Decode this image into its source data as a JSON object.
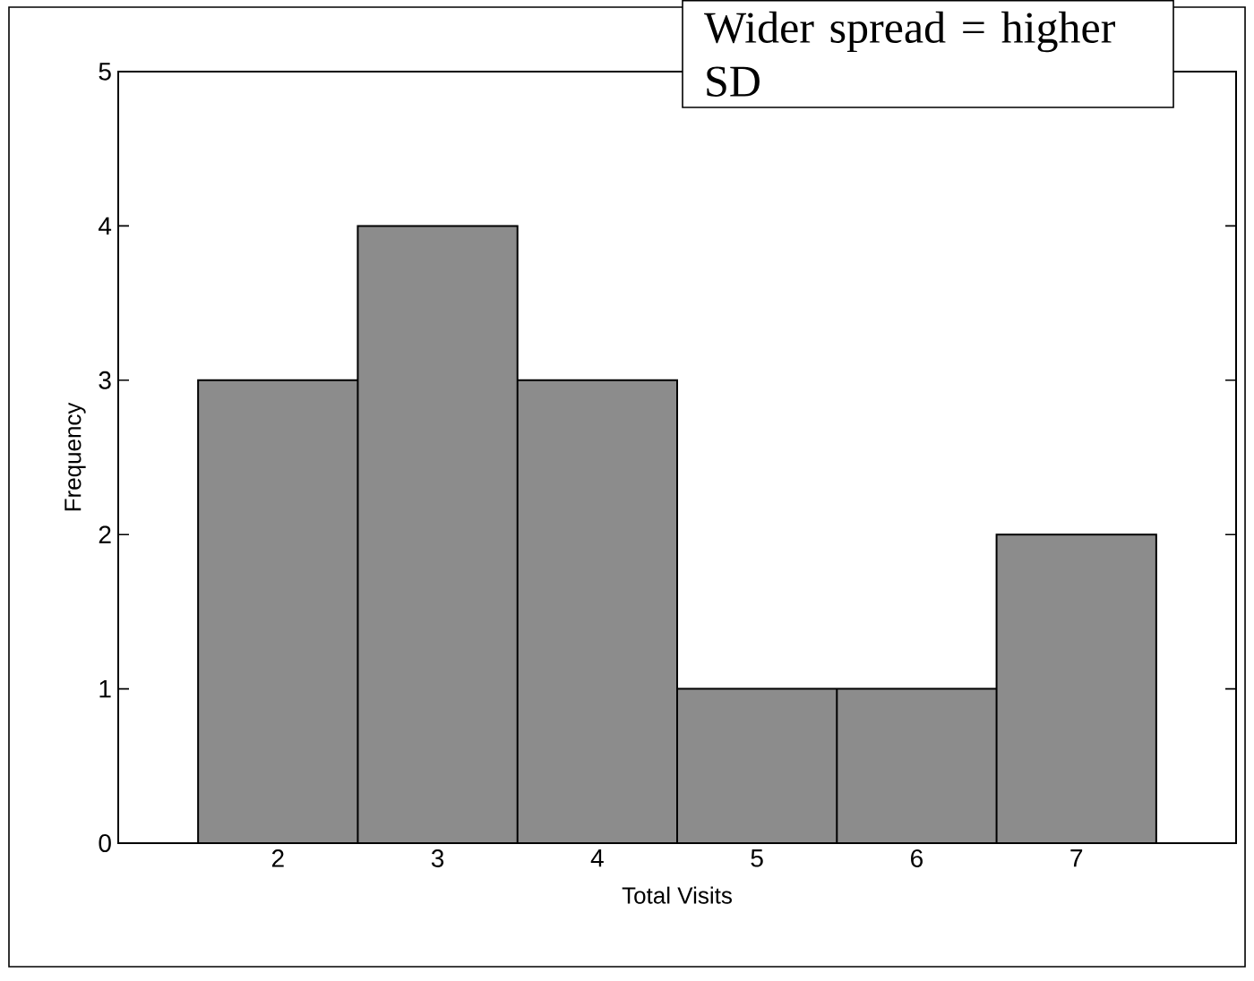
{
  "chart_data": {
    "type": "histogram",
    "xlabel": "Total Visits",
    "ylabel": "Frequency",
    "bins": [
      1.5,
      2.5,
      3.5,
      4.5,
      5.5,
      6.5,
      7.5
    ],
    "values": [
      3,
      4,
      3,
      1,
      1,
      2
    ],
    "color": "#8c8c8c",
    "xlim": [
      1,
      8
    ],
    "xticks": [
      2,
      3,
      4,
      5,
      6,
      7
    ],
    "ylim": [
      0,
      5
    ],
    "yticks": [
      0,
      1,
      2,
      3,
      4,
      5
    ],
    "annotations": [
      "Wider spread = higher SD"
    ]
  }
}
